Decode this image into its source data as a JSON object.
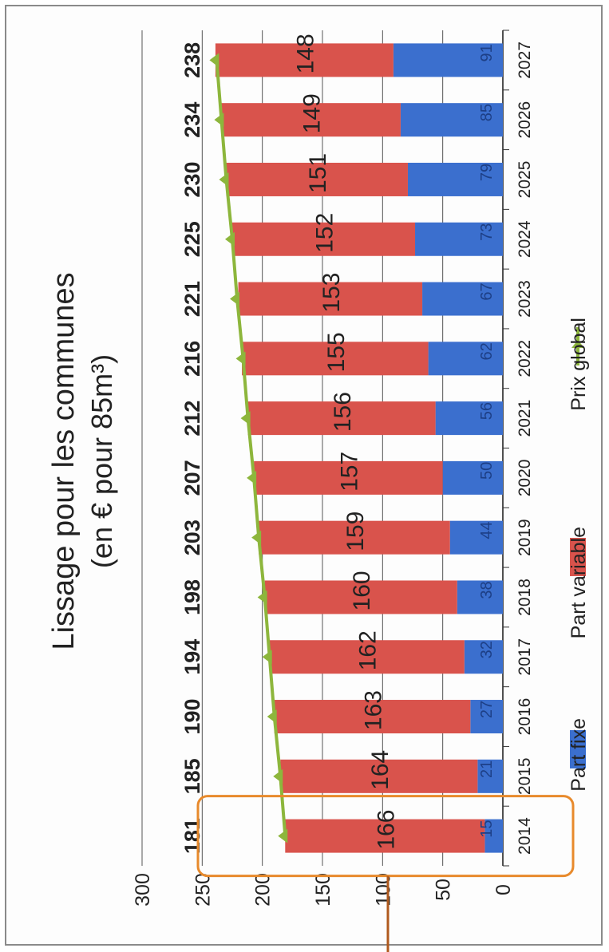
{
  "chart_data": {
    "type": "bar",
    "stacked": true,
    "orientation": "rotated",
    "title_line1": "Lissage pour les communes",
    "title_line2": "(en € pour 85m³)",
    "categories": [
      "2014",
      "2015",
      "2016",
      "2017",
      "2018",
      "2019",
      "2020",
      "2021",
      "2022",
      "2023",
      "2024",
      "2025",
      "2026",
      "2027"
    ],
    "series": [
      {
        "name": "Part fixe",
        "color": "#3b6fce",
        "values": [
          15,
          21,
          27,
          32,
          38,
          44,
          50,
          56,
          62,
          67,
          73,
          79,
          85,
          91
        ]
      },
      {
        "name": "Part variable",
        "color": "#d9534c",
        "values": [
          166,
          164,
          163,
          162,
          160,
          159,
          157,
          156,
          155,
          153,
          152,
          151,
          149,
          148
        ]
      }
    ],
    "line": {
      "name": "Prix global",
      "color": "#8db63c",
      "values": [
        181,
        185,
        190,
        194,
        198,
        203,
        207,
        212,
        216,
        221,
        225,
        230,
        234,
        238
      ]
    },
    "axis_ticks": [
      "0",
      "50",
      "100",
      "150",
      "200",
      "250",
      "300"
    ],
    "ylim": [
      0,
      300
    ],
    "legend": [
      "Part fixe",
      "Part variable",
      "Prix global"
    ],
    "highlight_category": "2014",
    "highlight_color": "#e88a2c"
  }
}
